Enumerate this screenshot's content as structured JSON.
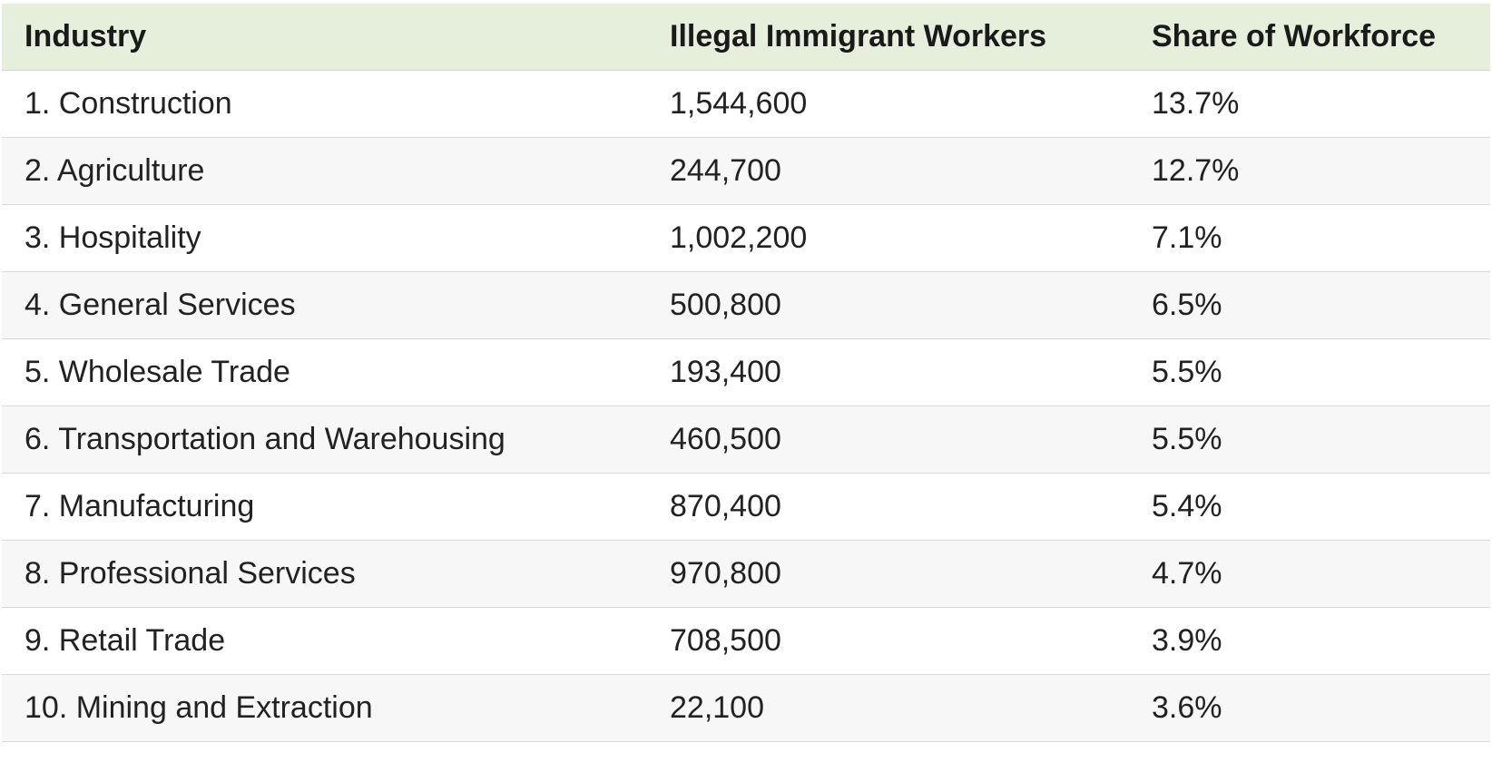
{
  "chart_data": {
    "type": "table",
    "columns": [
      "Industry",
      "Illegal Immigrant Workers",
      "Share of Workforce"
    ],
    "rows": [
      [
        "1. Construction",
        "1,544,600",
        "13.7%"
      ],
      [
        "2. Agriculture",
        "244,700",
        "12.7%"
      ],
      [
        "3. Hospitality",
        "1,002,200",
        "7.1%"
      ],
      [
        "4. General Services",
        "500,800",
        "6.5%"
      ],
      [
        "5. Wholesale Trade",
        "193,400",
        "5.5%"
      ],
      [
        "6. Transportation and Warehousing",
        "460,500",
        "5.5%"
      ],
      [
        "7. Manufacturing",
        "870,400",
        "5.4%"
      ],
      [
        "8. Professional Services",
        "970,800",
        "4.7%"
      ],
      [
        "9. Retail Trade",
        "708,500",
        "3.9%"
      ],
      [
        "10. Mining and Extraction",
        "22,100",
        "3.6%"
      ]
    ],
    "colors": {
      "header_background": "#e6eedc",
      "stripe_background": "#f7f7f7"
    }
  }
}
